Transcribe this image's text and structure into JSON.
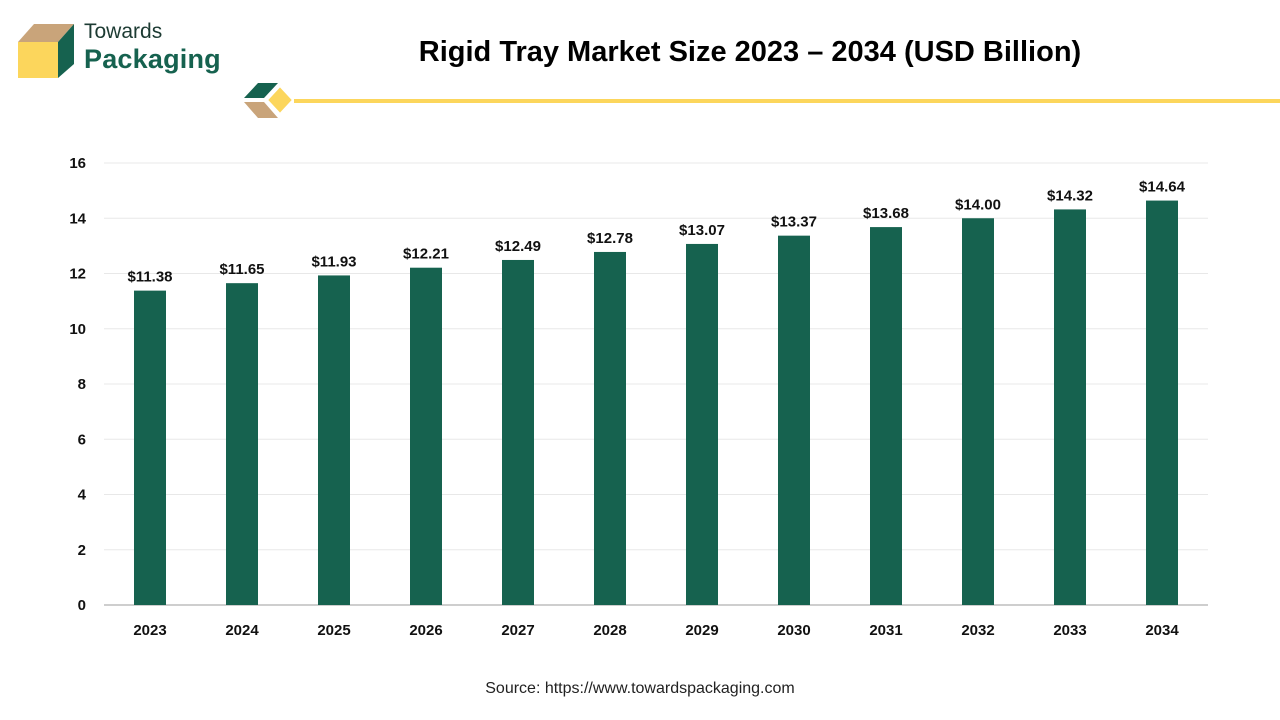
{
  "brand": {
    "name_top": "Towards",
    "name_bottom": "Packaging",
    "colors": {
      "green": "#16624f",
      "yellow": "#fcd65c",
      "tan": "#c9a47a"
    }
  },
  "source": "Source: https://www.towardspackaging.com",
  "chart_data": {
    "type": "bar",
    "title": "Rigid Tray Market Size 2023 – 2034 (USD Billion)",
    "xlabel": "",
    "ylabel": "",
    "categories": [
      "2023",
      "2024",
      "2025",
      "2026",
      "2027",
      "2028",
      "2029",
      "2030",
      "2031",
      "2032",
      "2033",
      "2034"
    ],
    "values": [
      11.38,
      11.65,
      11.93,
      12.21,
      12.49,
      12.78,
      13.07,
      13.37,
      13.68,
      14.0,
      14.32,
      14.64
    ],
    "data_labels": [
      "$11.38",
      "$11.65",
      "$11.93",
      "$12.21",
      "$12.49",
      "$12.78",
      "$13.07",
      "$13.37",
      "$13.68",
      "$14.00",
      "$14.32",
      "$14.64"
    ],
    "ylim": [
      0,
      16
    ],
    "yticks": [
      0,
      2,
      4,
      6,
      8,
      10,
      12,
      14,
      16
    ],
    "grid": true,
    "legend": "none",
    "bar_color": "#16624f"
  }
}
